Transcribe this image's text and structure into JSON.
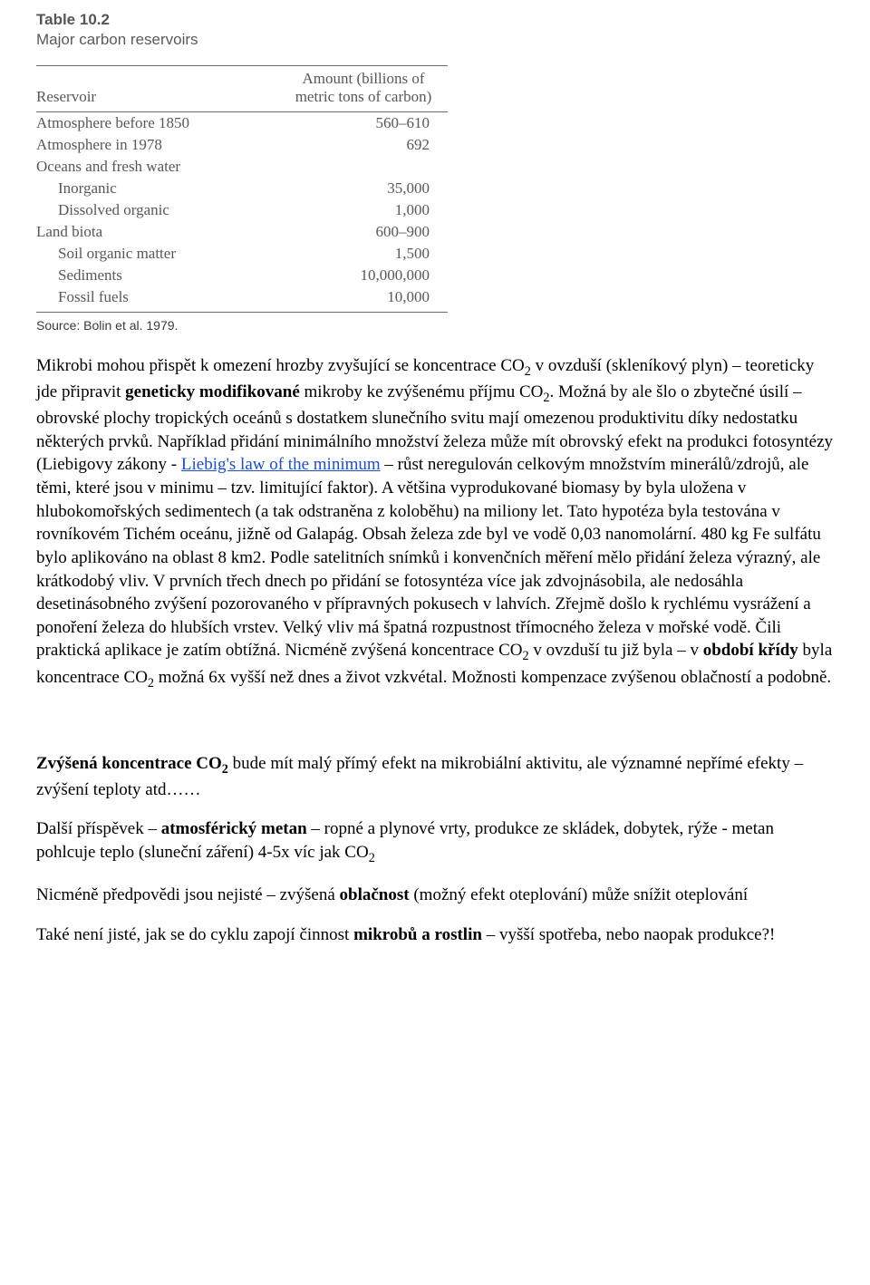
{
  "table": {
    "title": "Table 10.2",
    "subtitle": "Major carbon reservoirs",
    "col_reservoir_header": "Reservoir",
    "col_amount_header": "Amount (billions of<br>metric tons of carbon)",
    "rows": [
      {
        "label": "Atmosphere before 1850",
        "indent": false,
        "value": "560–610"
      },
      {
        "label": "Atmosphere in 1978",
        "indent": false,
        "value": "692"
      },
      {
        "label": "Oceans and fresh water",
        "indent": false,
        "value": ""
      },
      {
        "label": "Inorganic",
        "indent": true,
        "value": "35,000"
      },
      {
        "label": "Dissolved organic",
        "indent": true,
        "value": "1,000"
      },
      {
        "label": "Land biota",
        "indent": false,
        "value": "600–900"
      },
      {
        "label": "Soil organic matter",
        "indent": true,
        "value": "1,500"
      },
      {
        "label": "Sediments",
        "indent": true,
        "value": "10,000,000"
      },
      {
        "label": "Fossil fuels",
        "indent": true,
        "value": "10,000"
      }
    ],
    "source": "Source: Bolin et al. 1979."
  },
  "paragraphs": {
    "p1": "Mikrobi mohou přispět k omezení hrozby zvyšující se koncentrace CO<sub>2</sub> v ovzduší (skleníkový plyn) – teoreticky jde připravit <b>geneticky modifikované</b> mikroby ke zvýšenému příjmu CO<sub>2</sub>. Možná by ale šlo o zbytečné úsilí – obrovské plochy tropických oceánů s dostatkem slunečního svitu mají omezenou produktivitu díky nedostatku některých prvků. Například přidání minimálního množství železa může mít obrovský efekt na produkci fotosyntézy (Liebigovy zákony - <a href=\"#\" data-name=\"liebig-law-link\" data-interactable=\"true\">Liebig's law of the minimum</a> – růst neregulován celkovým množstvím minerálů/zdrojů, ale těmi, které jsou v minimu – tzv. limitující faktor). A většina vyprodukované biomasy by byla uložena v hlubokomořských sedimentech (a tak odstraněna z koloběhu) na miliony let. Tato hypotéza byla testována v rovníkovém Tichém oceánu, jižně od Galapág. Obsah železa zde byl ve vodě 0,03 nanomolární. 480 kg Fe sulfátu bylo aplikováno na oblast 8 km2. Podle satelitních snímků i konvenčních měření mělo přidání železa výrazný, ale krátkodobý vliv. V prvních třech dnech po přidání se fotosyntéza více jak zdvojnásobila, ale nedosáhla desetinásobného zvýšení pozorovaného v přípravných pokusech v lahvích. Zřejmě došlo k rychlému vysrážení a ponoření železa do hlubších vrstev. Velký vliv má špatná rozpustnost třímocného železa v mořské vodě. Čili praktická aplikace je zatím obtížná. Nicméně zvýšená koncentrace CO<sub>2</sub> v ovzduší tu již byla – v <b>období křídy</b> byla koncentrace CO<sub>2</sub> možná 6x vyšší než dnes a život vzkvétal. Možnosti kompenzace zvýšenou oblačností a podobně.",
    "p2": "<b>Zvýšená koncentrace CO<sub>2</sub></b> bude mít malý přímý efekt na mikrobiální aktivitu, ale významné nepřímé efekty – zvýšení teploty atd……",
    "p3": "Další příspěvek – <b>atmosférický metan</b> – ropné a plynové vrty, produkce ze skládek, dobytek, rýže  - metan pohlcuje teplo (sluneční záření) 4-5x víc jak CO<sub>2</sub>",
    "p4": "Nicméně předpovědi jsou nejisté – zvýšená <b>oblačnost</b> (možný efekt oteplování) může snížit oteplování",
    "p5": "Také není jisté, jak se do cyklu zapojí činnost <b>mikrobů a rostlin</b> – vyšší spotřeba, nebo naopak produkce?!"
  }
}
